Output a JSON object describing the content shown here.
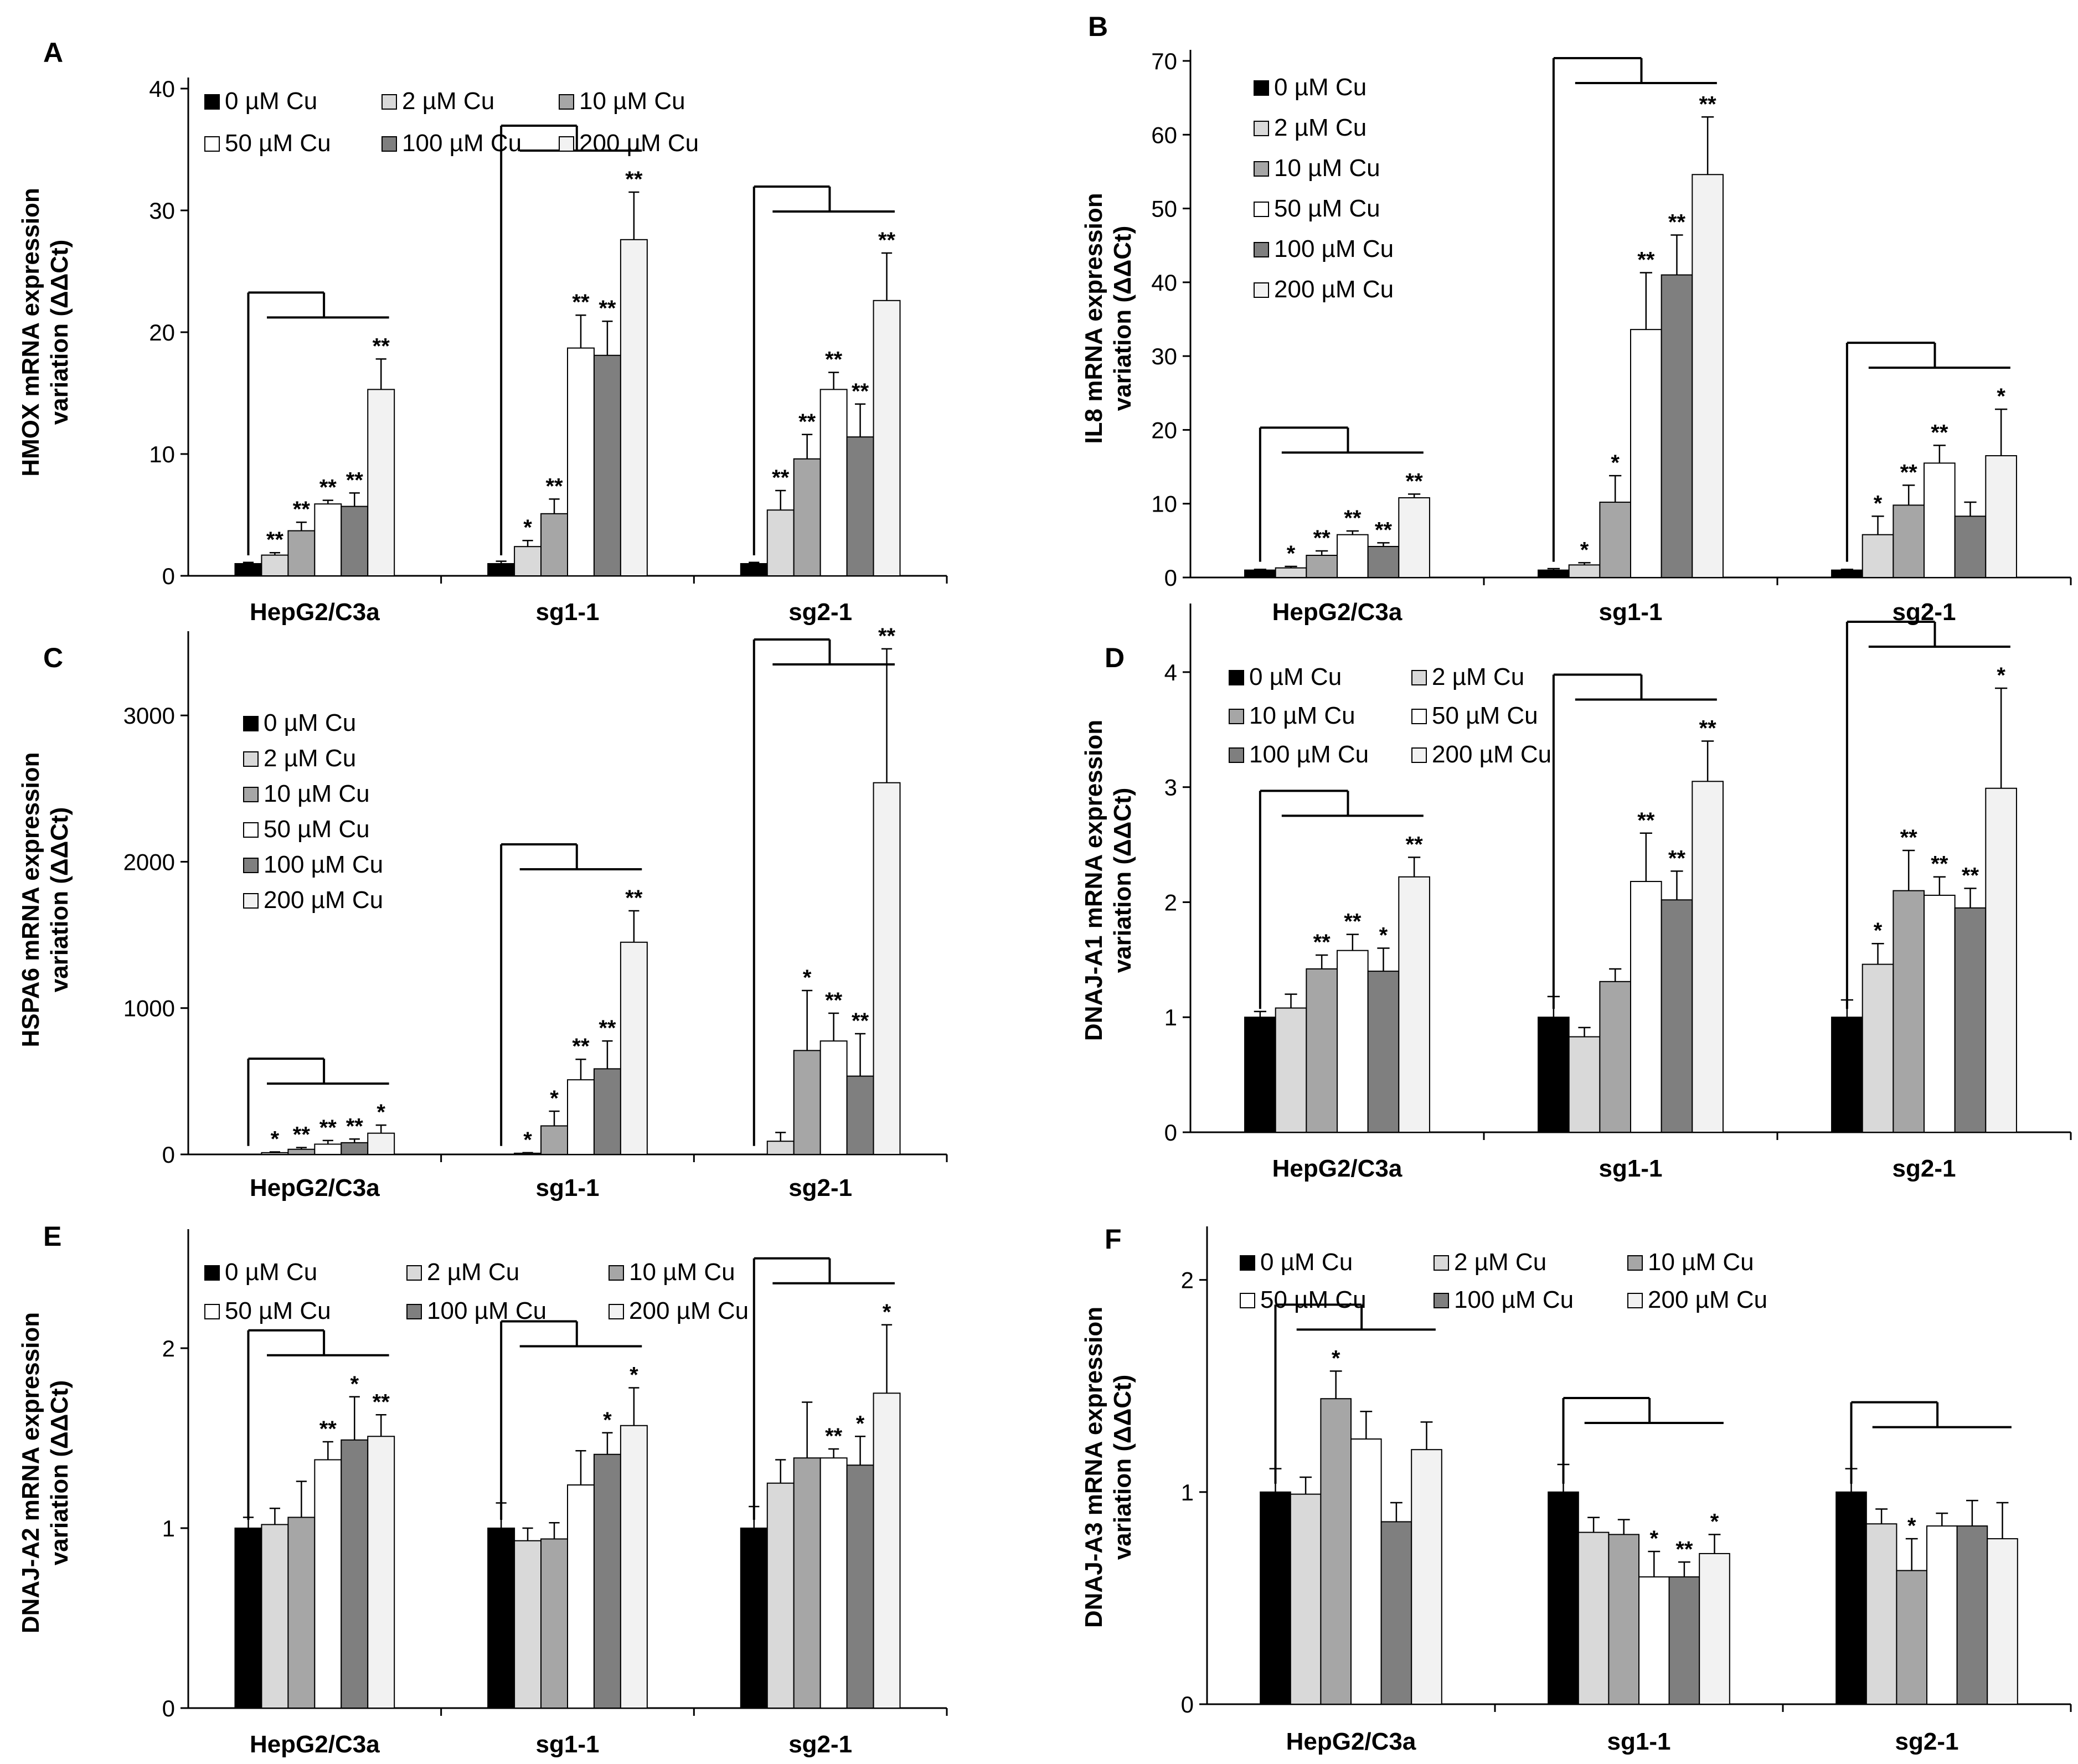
{
  "legend_labels": [
    "0 µM Cu",
    "2 µM Cu",
    "10 µM Cu",
    "50 µM Cu",
    "100 µM Cu",
    "200 µM Cu"
  ],
  "series_colors": [
    "#000000",
    "#d9d9d9",
    "#a6a6a6",
    "#ffffff",
    "#7f7f7f",
    "#f2f2f2"
  ],
  "chart_data": [
    {
      "id": "A",
      "type": "bar",
      "panel_label": "A",
      "ylabel": [
        "HMOX mRNA expression",
        "variation (ΔΔCt)"
      ],
      "ylim": [
        0,
        40
      ],
      "yticks": [
        0,
        10,
        20,
        30,
        40
      ],
      "categories": [
        "HepG2/C3a",
        "sg1-1",
        "sg2-1"
      ],
      "legend_layout": "3x2",
      "legend_position": "top-left",
      "series": [
        {
          "name": "0 µM Cu",
          "values": [
            1,
            1,
            1
          ],
          "errors": [
            0.1,
            0.2,
            0.1
          ]
        },
        {
          "name": "2 µM Cu",
          "values": [
            1.7,
            2.4,
            5.4
          ],
          "errors": [
            0.2,
            0.5,
            1.6
          ]
        },
        {
          "name": "10 µM Cu",
          "values": [
            3.7,
            5.1,
            9.6
          ],
          "errors": [
            0.7,
            1.2,
            2.0
          ]
        },
        {
          "name": "50 µM Cu",
          "values": [
            5.9,
            18.7,
            15.3
          ],
          "errors": [
            0.3,
            2.7,
            1.4
          ]
        },
        {
          "name": "100 µM Cu",
          "values": [
            5.7,
            18.1,
            11.4
          ],
          "errors": [
            1.1,
            2.8,
            2.7
          ]
        },
        {
          "name": "200 µM Cu",
          "values": [
            15.3,
            27.6,
            22.6
          ],
          "errors": [
            2.5,
            3.9,
            3.9
          ]
        }
      ],
      "significance": [
        [
          "",
          "**",
          "**",
          "**",
          "**",
          "**"
        ],
        [
          "",
          "*",
          "**",
          "**",
          "**",
          "**"
        ],
        [
          "",
          "**",
          "**",
          "**",
          "**",
          "**"
        ]
      ]
    },
    {
      "id": "B",
      "type": "bar",
      "panel_label": "B",
      "ylabel": [
        "IL8 mRNA expression",
        "variation (ΔΔCt)"
      ],
      "ylim": [
        0,
        70
      ],
      "yticks": [
        0,
        10,
        20,
        30,
        40,
        50,
        60,
        70
      ],
      "categories": [
        "HepG2/C3a",
        "sg1-1",
        "sg2-1"
      ],
      "legend_layout": "1x6",
      "legend_position": "top-left",
      "series": [
        {
          "name": "0 µM Cu",
          "values": [
            1,
            1,
            1
          ],
          "errors": [
            0.1,
            0.2,
            0.1
          ]
        },
        {
          "name": "2 µM Cu",
          "values": [
            1.3,
            1.7,
            5.8
          ],
          "errors": [
            0.2,
            0.3,
            2.5
          ]
        },
        {
          "name": "10 µM Cu",
          "values": [
            3.0,
            10.2,
            9.8
          ],
          "errors": [
            0.6,
            3.6,
            2.7
          ]
        },
        {
          "name": "50 µM Cu",
          "values": [
            5.8,
            33.6,
            15.5
          ],
          "errors": [
            0.5,
            7.7,
            2.4
          ]
        },
        {
          "name": "100 µM Cu",
          "values": [
            4.2,
            41.0,
            8.3
          ],
          "errors": [
            0.5,
            5.4,
            1.9
          ]
        },
        {
          "name": "200 µM Cu",
          "values": [
            10.8,
            54.6,
            16.5
          ],
          "errors": [
            0.5,
            7.8,
            6.3
          ]
        }
      ],
      "significance": [
        [
          "",
          "*",
          "**",
          "**",
          "**",
          "**"
        ],
        [
          "",
          "*",
          "*",
          "**",
          "**",
          "**"
        ],
        [
          "",
          "*",
          "**",
          "**",
          "",
          "*"
        ]
      ]
    },
    {
      "id": "C",
      "type": "bar",
      "panel_label": "C",
      "ylabel": [
        "HSPA6 mRNA expression",
        "variation (ΔΔCt)"
      ],
      "ylim": [
        0,
        3500
      ],
      "yticks": [
        0,
        1000,
        2000,
        3000
      ],
      "categories": [
        "HepG2/C3a",
        "sg1-1",
        "sg2-1"
      ],
      "legend_layout": "1x6",
      "legend_position": "top-left",
      "series": [
        {
          "name": "0 µM Cu",
          "values": [
            1,
            1,
            1
          ],
          "errors": [
            0,
            0,
            0
          ]
        },
        {
          "name": "2 µM Cu",
          "values": [
            12,
            8,
            90
          ],
          "errors": [
            5,
            4,
            60
          ]
        },
        {
          "name": "10 µM Cu",
          "values": [
            35,
            195,
            710
          ],
          "errors": [
            12,
            100,
            410
          ]
        },
        {
          "name": "50 µM Cu",
          "values": [
            70,
            510,
            775
          ],
          "errors": [
            25,
            140,
            190
          ]
        },
        {
          "name": "100 µM Cu",
          "values": [
            80,
            585,
            535
          ],
          "errors": [
            25,
            190,
            290
          ]
        },
        {
          "name": "200 µM Cu",
          "values": [
            145,
            1450,
            2540
          ],
          "errors": [
            55,
            215,
            915
          ]
        }
      ],
      "significance": [
        [
          "",
          "*",
          "**",
          "**",
          "**",
          "*"
        ],
        [
          "",
          "*",
          "*",
          "**",
          "**",
          "**"
        ],
        [
          "",
          "",
          "*",
          "**",
          "**",
          "**"
        ]
      ]
    },
    {
      "id": "D",
      "type": "bar",
      "panel_label": "D",
      "ylabel": [
        "DNAJ-A1 mRNA expression",
        "variation (ΔΔCt)"
      ],
      "ylim": [
        0,
        4.5
      ],
      "yticks": [
        0,
        1,
        2,
        3,
        4
      ],
      "categories": [
        "HepG2/C3a",
        "sg1-1",
        "sg2-1"
      ],
      "legend_layout": "2x3",
      "legend_position": "top-left",
      "series": [
        {
          "name": "0 µM Cu",
          "values": [
            1.0,
            1.0,
            1.0
          ],
          "errors": [
            0.05,
            0.18,
            0.15
          ]
        },
        {
          "name": "2 µM Cu",
          "values": [
            1.08,
            0.83,
            1.46
          ],
          "errors": [
            0.12,
            0.08,
            0.18
          ]
        },
        {
          "name": "10 µM Cu",
          "values": [
            1.42,
            1.31,
            2.1
          ],
          "errors": [
            0.12,
            0.11,
            0.35
          ]
        },
        {
          "name": "50 µM Cu",
          "values": [
            1.58,
            2.18,
            2.06
          ],
          "errors": [
            0.14,
            0.42,
            0.16
          ]
        },
        {
          "name": "100 µM Cu",
          "values": [
            1.4,
            2.02,
            1.95
          ],
          "errors": [
            0.2,
            0.25,
            0.17
          ]
        },
        {
          "name": "200 µM Cu",
          "values": [
            2.22,
            3.05,
            2.99
          ],
          "errors": [
            0.17,
            0.35,
            0.87
          ]
        }
      ],
      "significance": [
        [
          "",
          "",
          "**",
          "**",
          "*",
          "**"
        ],
        [
          "",
          "",
          "",
          "**",
          "**",
          "**"
        ],
        [
          "",
          "*",
          "**",
          "**",
          "**",
          "*"
        ]
      ]
    },
    {
      "id": "E",
      "type": "bar",
      "panel_label": "E",
      "ylabel": [
        "DNAJ-A2 mRNA expression",
        "variation (ΔΔCt)"
      ],
      "ylim": [
        0,
        2.6
      ],
      "yticks": [
        0,
        1,
        2
      ],
      "categories": [
        "HepG2/C3a",
        "sg1-1",
        "sg2-1"
      ],
      "legend_layout": "3x2",
      "legend_position": "top-left",
      "series": [
        {
          "name": "0 µM Cu",
          "values": [
            1.0,
            1.0,
            1.0
          ],
          "errors": [
            0.06,
            0.14,
            0.12
          ]
        },
        {
          "name": "2 µM Cu",
          "values": [
            1.02,
            0.93,
            1.25
          ],
          "errors": [
            0.09,
            0.07,
            0.13
          ]
        },
        {
          "name": "10 µM Cu",
          "values": [
            1.06,
            0.94,
            1.39
          ],
          "errors": [
            0.2,
            0.09,
            0.31
          ]
        },
        {
          "name": "50 µM Cu",
          "values": [
            1.38,
            1.24,
            1.39
          ],
          "errors": [
            0.1,
            0.19,
            0.05
          ]
        },
        {
          "name": "100 µM Cu",
          "values": [
            1.49,
            1.41,
            1.35
          ],
          "errors": [
            0.24,
            0.12,
            0.16
          ]
        },
        {
          "name": "200 µM Cu",
          "values": [
            1.51,
            1.57,
            1.75
          ],
          "errors": [
            0.12,
            0.21,
            0.38
          ]
        }
      ],
      "significance": [
        [
          "",
          "",
          "",
          "**",
          "*",
          "**"
        ],
        [
          "",
          "",
          "",
          "",
          "*",
          "*"
        ],
        [
          "",
          "",
          "",
          "**",
          "*",
          "*"
        ]
      ]
    },
    {
      "id": "F",
      "type": "bar",
      "panel_label": "F",
      "ylabel": [
        "DNAJ-A3 mRNA expression",
        "variation (ΔΔCt)"
      ],
      "ylim": [
        0,
        2.2
      ],
      "yticks": [
        0,
        1,
        2
      ],
      "categories": [
        "HepG2/C3a",
        "sg1-1",
        "sg2-1"
      ],
      "legend_layout": "3x2",
      "legend_position": "top-left",
      "series": [
        {
          "name": "0 µM Cu",
          "values": [
            1.0,
            1.0,
            1.0
          ],
          "errors": [
            0.11,
            0.13,
            0.11
          ]
        },
        {
          "name": "2 µM Cu",
          "values": [
            0.99,
            0.81,
            0.85
          ],
          "errors": [
            0.08,
            0.07,
            0.07
          ]
        },
        {
          "name": "10 µM Cu",
          "values": [
            1.44,
            0.8,
            0.63
          ],
          "errors": [
            0.13,
            0.07,
            0.15
          ]
        },
        {
          "name": "50 µM Cu",
          "values": [
            1.25,
            0.6,
            0.84
          ],
          "errors": [
            0.13,
            0.12,
            0.06
          ]
        },
        {
          "name": "100 µM Cu",
          "values": [
            0.86,
            0.6,
            0.84
          ],
          "errors": [
            0.09,
            0.07,
            0.12
          ]
        },
        {
          "name": "200 µM Cu",
          "values": [
            1.2,
            0.71,
            0.78
          ],
          "errors": [
            0.13,
            0.09,
            0.17
          ]
        }
      ],
      "significance": [
        [
          "",
          "",
          "*",
          "",
          "",
          ""
        ],
        [
          "",
          "",
          "",
          "*",
          "**",
          "*"
        ],
        [
          "",
          "",
          "*",
          "",
          "",
          ""
        ]
      ]
    }
  ]
}
